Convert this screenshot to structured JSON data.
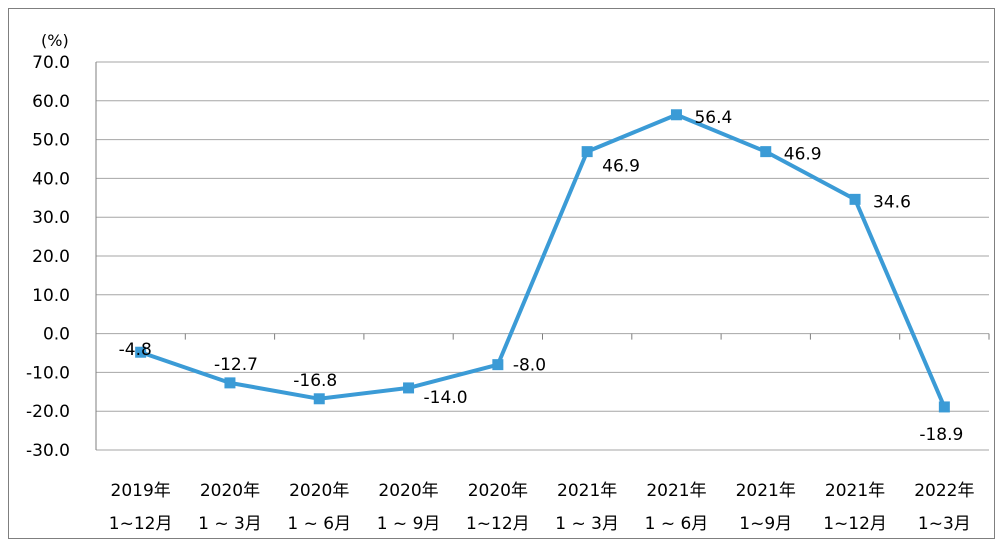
{
  "chart_data": {
    "type": "line",
    "unit_label": "(%)",
    "ylim": [
      -30,
      70
    ],
    "y_ticks": [
      "70.0",
      "60.0",
      "50.0",
      "40.0",
      "30.0",
      "20.0",
      "10.0",
      "0.0",
      "-10.0",
      "-20.0",
      "-30.0"
    ],
    "y_tick_values": [
      70,
      60,
      50,
      40,
      30,
      20,
      10,
      0,
      -10,
      -20,
      -30
    ],
    "grid": true,
    "categories": [
      [
        "2019年",
        "1~12月"
      ],
      [
        "2020年",
        "1 ~ 3月"
      ],
      [
        "2020年",
        "1 ~ 6月"
      ],
      [
        "2020年",
        "1 ~ 9月"
      ],
      [
        "2020年",
        "1~12月"
      ],
      [
        "2021年",
        "1 ~ 3月"
      ],
      [
        "2021年",
        "1 ~ 6月"
      ],
      [
        "2021年",
        "1~9月"
      ],
      [
        "2021年",
        "1~12月"
      ],
      [
        "2022年",
        "1~3月"
      ]
    ],
    "values": [
      -4.8,
      -12.7,
      -16.8,
      -14.0,
      -8.0,
      46.9,
      56.4,
      46.9,
      34.6,
      -18.9
    ],
    "data_labels": [
      "-4.8",
      "-12.7",
      "-16.8",
      "-14.0",
      "-8.0",
      "46.9",
      "56.4",
      "46.9",
      "34.6",
      "-18.9"
    ],
    "line_color": "#3b9bd6",
    "grid_color": "#a6a6a6"
  }
}
